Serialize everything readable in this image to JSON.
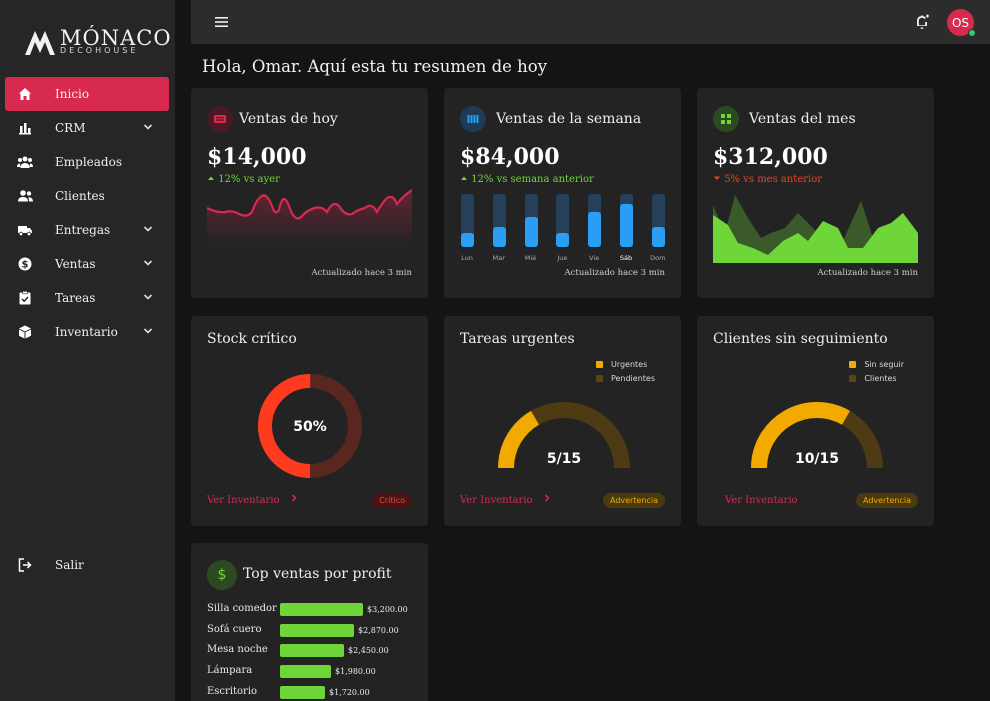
{
  "brand": {
    "name": "MÓNACO",
    "sub": "DECOHOUSE"
  },
  "sidebar": {
    "items": [
      {
        "label": "Inicio",
        "icon": "home-icon",
        "active": true,
        "expandable": false
      },
      {
        "label": "CRM",
        "icon": "bar-chart-icon",
        "active": false,
        "expandable": true
      },
      {
        "label": "Empleados",
        "icon": "group-icon",
        "active": false,
        "expandable": false
      },
      {
        "label": "Clientes",
        "icon": "people-icon",
        "active": false,
        "expandable": false
      },
      {
        "label": "Entregas",
        "icon": "truck-icon",
        "active": false,
        "expandable": true
      },
      {
        "label": "Ventas",
        "icon": "dollar-icon",
        "active": false,
        "expandable": true
      },
      {
        "label": "Tareas",
        "icon": "task-icon",
        "active": false,
        "expandable": true
      },
      {
        "label": "Inventario",
        "icon": "box-icon",
        "active": false,
        "expandable": true
      }
    ],
    "logout": "Salir"
  },
  "topbar": {
    "avatar_initials": "OS"
  },
  "greeting": "Hola, Omar. Aquí esta tu resumen de hoy",
  "kpis": {
    "today": {
      "title": "Ventas de hoy",
      "value": "$14,000",
      "delta": "12% vs ayer",
      "updated": "Actualizado hace 3 min"
    },
    "week": {
      "title": "Ventas de la semana",
      "value": "$84,000",
      "delta": "12% vs semana anterior",
      "updated": "Actualizado hace 3 min"
    },
    "month": {
      "title": "Ventas del mes",
      "value": "$312,000",
      "delta": "5% vs mes anterior",
      "updated": "Actualizado hace 3 min"
    }
  },
  "week_bars": {
    "days": [
      "Lun",
      "Mar",
      "Mié",
      "Jue",
      "Vie",
      "Sáb",
      "Dom"
    ],
    "fill": [
      0.26,
      0.38,
      0.56,
      0.26,
      0.66,
      0.82,
      0.38
    ],
    "selected_index": 5
  },
  "stock": {
    "title": "Stock crítico",
    "percent": 50,
    "percent_label": "50%",
    "link": "Ver Inventario",
    "badge": "Crítico"
  },
  "tasks": {
    "title": "Tareas urgentes",
    "value": "5/15",
    "done": 5,
    "total": 15,
    "legend": [
      "Urgentes",
      "Pendientes"
    ],
    "link": "Ver Inventario",
    "badge": "Advertencia"
  },
  "clients": {
    "title": "Clientes sin seguimiento",
    "value": "10/15",
    "done": 10,
    "total": 15,
    "legend": [
      "Sin seguir",
      "Clientes"
    ],
    "link": "Ver Inventario",
    "badge": "Advertencia"
  },
  "top_sales": {
    "title": "Top ventas por profit",
    "items": [
      {
        "name": "Silla comedor",
        "value": 3200,
        "label": "$3,200.00"
      },
      {
        "name": "Sofá cuero",
        "value": 2870,
        "label": "$2,870.00"
      },
      {
        "name": "Mesa noche",
        "value": 2450,
        "label": "$2,450.00"
      },
      {
        "name": "Lámpara",
        "value": 1980,
        "label": "$1,980.00"
      },
      {
        "name": "Escritorio",
        "value": 1720,
        "label": "$1,720.00"
      }
    ]
  },
  "colors": {
    "accent": "#d8294f",
    "positive": "#6fd63a",
    "negative": "#e8452c",
    "warning": "#f2a900",
    "blue": "#2a9df4"
  }
}
